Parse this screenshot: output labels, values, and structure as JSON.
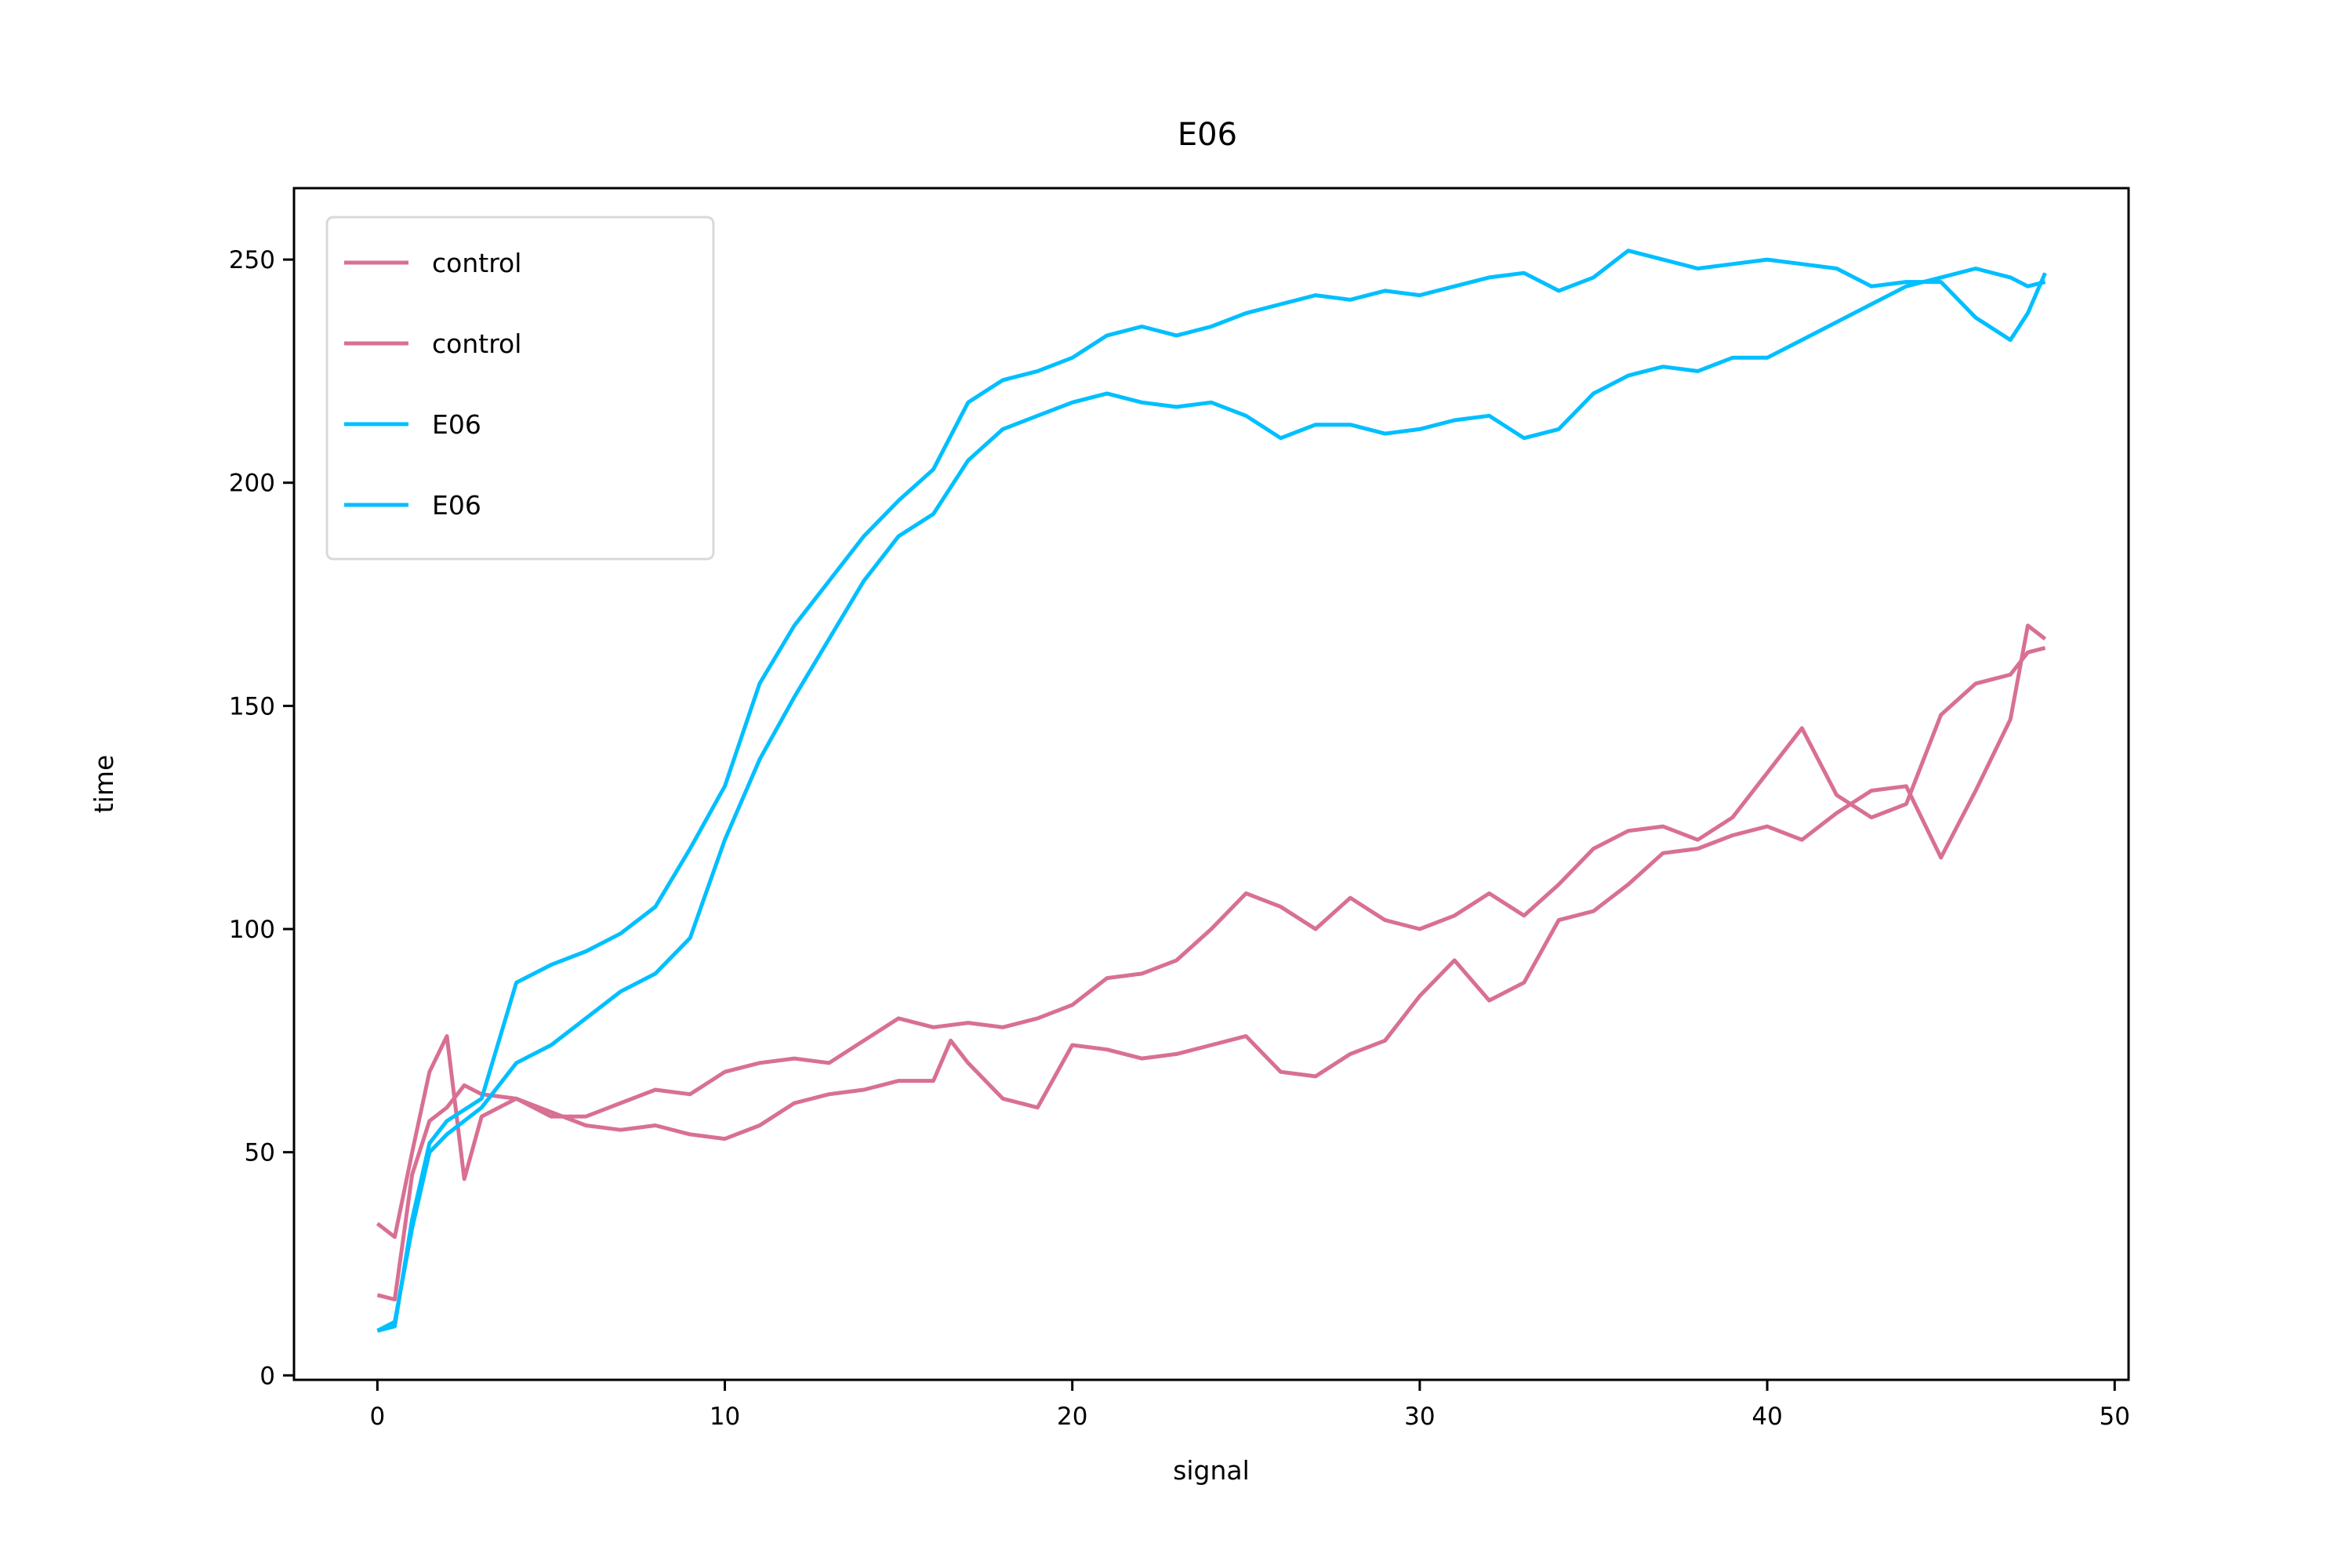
{
  "chart_data": {
    "type": "line",
    "title": "E06",
    "xlabel": "signal",
    "ylabel": "time",
    "xlim": [
      -2.4,
      50.4
    ],
    "ylim": [
      -1,
      266
    ],
    "xticks": [
      0,
      10,
      20,
      30,
      40,
      50
    ],
    "yticks": [
      0,
      50,
      100,
      150,
      200,
      250
    ],
    "grid": false,
    "legend_position": "top-left",
    "series": [
      {
        "name": "control",
        "color": "#d87093",
        "x": [
          0,
          0.5,
          1,
          1.5,
          2,
          2.5,
          3,
          4,
          5,
          6,
          7,
          8,
          9,
          10,
          11,
          12,
          13,
          14,
          15,
          16,
          17,
          18,
          19,
          20,
          21,
          22,
          23,
          24,
          25,
          26,
          27,
          28,
          29,
          30,
          31,
          32,
          33,
          34,
          35,
          36,
          37,
          38,
          39,
          40,
          41,
          42,
          43,
          44,
          45,
          46,
          47,
          47.5,
          48
        ],
        "values": [
          34,
          31,
          50,
          68,
          76,
          44,
          58,
          62,
          58,
          58,
          61,
          64,
          63,
          68,
          70,
          71,
          70,
          75,
          80,
          78,
          79,
          78,
          80,
          83,
          89,
          90,
          93,
          100,
          108,
          105,
          100,
          107,
          102,
          100,
          103,
          108,
          103,
          110,
          118,
          122,
          123,
          120,
          125,
          135,
          145,
          130,
          125,
          128,
          148,
          155,
          157,
          162,
          163
        ]
      },
      {
        "name": "control",
        "color": "#d87093",
        "x": [
          0,
          0.5,
          1,
          1.5,
          2,
          2.5,
          3,
          4,
          5,
          6,
          7,
          8,
          9,
          10,
          11,
          12,
          13,
          14,
          15,
          16,
          16.5,
          17,
          18,
          19,
          20,
          21,
          22,
          23,
          24,
          25,
          26,
          27,
          28,
          29,
          30,
          31,
          32,
          33,
          34,
          35,
          36,
          37,
          38,
          39,
          40,
          41,
          42,
          43,
          44,
          45,
          46,
          47,
          47.5,
          48
        ],
        "values": [
          18,
          17,
          45,
          57,
          60,
          65,
          63,
          62,
          59,
          56,
          55,
          56,
          54,
          53,
          56,
          61,
          63,
          64,
          66,
          66,
          75,
          70,
          62,
          60,
          74,
          73,
          71,
          72,
          74,
          76,
          68,
          67,
          72,
          75,
          85,
          93,
          84,
          88,
          102,
          104,
          110,
          117,
          118,
          121,
          123,
          120,
          126,
          131,
          132,
          116,
          131,
          147,
          168,
          165
        ]
      },
      {
        "name": "E06",
        "color": "#00bfff",
        "x": [
          0,
          0.5,
          1,
          1.5,
          2,
          3,
          4,
          5,
          6,
          7,
          8,
          9,
          10,
          11,
          12,
          13,
          14,
          15,
          16,
          17,
          18,
          19,
          20,
          21,
          22,
          23,
          24,
          25,
          26,
          27,
          28,
          29,
          30,
          31,
          32,
          33,
          34,
          35,
          36,
          37,
          38,
          39,
          40,
          41,
          42,
          43,
          44,
          45,
          46,
          47,
          47.5,
          48
        ],
        "values": [
          10,
          11,
          35,
          52,
          57,
          62,
          88,
          92,
          95,
          99,
          105,
          118,
          132,
          155,
          168,
          178,
          188,
          196,
          203,
          218,
          223,
          225,
          228,
          233,
          235,
          233,
          235,
          238,
          240,
          242,
          241,
          243,
          242,
          244,
          246,
          247,
          243,
          246,
          252,
          250,
          248,
          249,
          250,
          249,
          248,
          244,
          245,
          245,
          237,
          232,
          238,
          247
        ]
      },
      {
        "name": "E06",
        "color": "#00bfff",
        "x": [
          0,
          0.5,
          1,
          1.5,
          2,
          3,
          4,
          5,
          6,
          7,
          8,
          9,
          10,
          11,
          12,
          13,
          14,
          15,
          16,
          17,
          18,
          19,
          20,
          21,
          22,
          23,
          24,
          25,
          26,
          27,
          28,
          29,
          30,
          31,
          32,
          33,
          34,
          35,
          36,
          37,
          38,
          39,
          40,
          41,
          42,
          43,
          44,
          45,
          46,
          47,
          47.5,
          48
        ],
        "values": [
          10,
          12,
          33,
          50,
          54,
          60,
          70,
          74,
          80,
          86,
          90,
          98,
          120,
          138,
          152,
          165,
          178,
          188,
          193,
          205,
          212,
          215,
          218,
          220,
          218,
          217,
          218,
          215,
          210,
          213,
          213,
          211,
          212,
          214,
          215,
          210,
          212,
          220,
          224,
          226,
          225,
          228,
          228,
          232,
          236,
          240,
          244,
          246,
          248,
          246,
          244,
          245
        ]
      }
    ]
  }
}
